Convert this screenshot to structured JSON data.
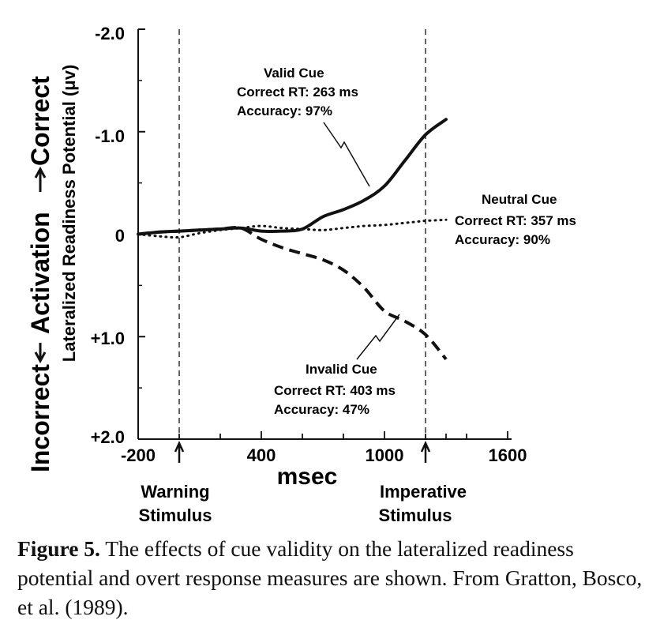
{
  "chart_data": {
    "type": "line",
    "y_outer_label": {
      "bottom": "Incorrect",
      "middle": "Activation",
      "top": "Correct"
    },
    "ylabel": "Lateralized Readiness Potential (μv)",
    "xlabel": "msec",
    "xlim": [
      -200,
      1800
    ],
    "ylim": [
      2.0,
      -2.0
    ],
    "x_ticks": [
      -200,
      400,
      1000,
      1600
    ],
    "x_tick_labels": [
      "-200",
      "400",
      "1000",
      "1600"
    ],
    "y_ticks": [
      -2.0,
      -1.0,
      0,
      1.0,
      2.0
    ],
    "y_tick_labels": [
      "-2.0",
      "-1.0",
      "0",
      "+1.0",
      "+2.0"
    ],
    "markers": [
      {
        "x": 0,
        "label_line1": "Warning",
        "label_line2": "Stimulus"
      },
      {
        "x": 1200,
        "label_line1": "Imperative",
        "label_line2": "Stimulus"
      }
    ],
    "series": [
      {
        "name": "Valid Cue",
        "style": "solid",
        "rt_text": "Correct RT: 263 ms",
        "acc_text": "Accuracy: 97%",
        "x": [
          -200,
          -100,
          0,
          100,
          200,
          300,
          400,
          500,
          600,
          700,
          800,
          900,
          1000,
          1100,
          1200,
          1300
        ],
        "y": [
          0.0,
          -0.02,
          -0.03,
          -0.04,
          -0.05,
          -0.06,
          -0.03,
          -0.03,
          -0.05,
          -0.17,
          -0.24,
          -0.33,
          -0.47,
          -0.72,
          -0.97,
          -1.12
        ]
      },
      {
        "name": "Neutral Cue",
        "style": "dotted",
        "rt_text": "Correct RT:  357 ms",
        "acc_text": "Accuracy:  90%",
        "x": [
          -200,
          -100,
          0,
          100,
          200,
          300,
          400,
          500,
          600,
          700,
          800,
          900,
          1000,
          1100,
          1200,
          1300
        ],
        "y": [
          0.0,
          0.02,
          0.03,
          -0.01,
          -0.04,
          -0.06,
          -0.08,
          -0.06,
          -0.05,
          -0.04,
          -0.06,
          -0.08,
          -0.09,
          -0.11,
          -0.13,
          -0.14
        ]
      },
      {
        "name": "Invalid Cue",
        "style": "dashed",
        "rt_text": "Correct RT:  403 ms",
        "acc_text": "Accuracy:  47%",
        "x": [
          -200,
          -100,
          0,
          100,
          200,
          300,
          400,
          500,
          600,
          700,
          800,
          900,
          1000,
          1100,
          1200,
          1300
        ],
        "y": [
          0.0,
          -0.02,
          -0.03,
          -0.04,
          -0.05,
          -0.06,
          0.05,
          0.13,
          0.19,
          0.25,
          0.35,
          0.52,
          0.75,
          0.85,
          0.98,
          1.22
        ]
      }
    ]
  },
  "caption": {
    "bold": "Figure 5.",
    "text": " The effects of cue validity on the lateralized readiness potential and overt response measures are shown. From Gratton, Bosco, et al. (1989)."
  }
}
